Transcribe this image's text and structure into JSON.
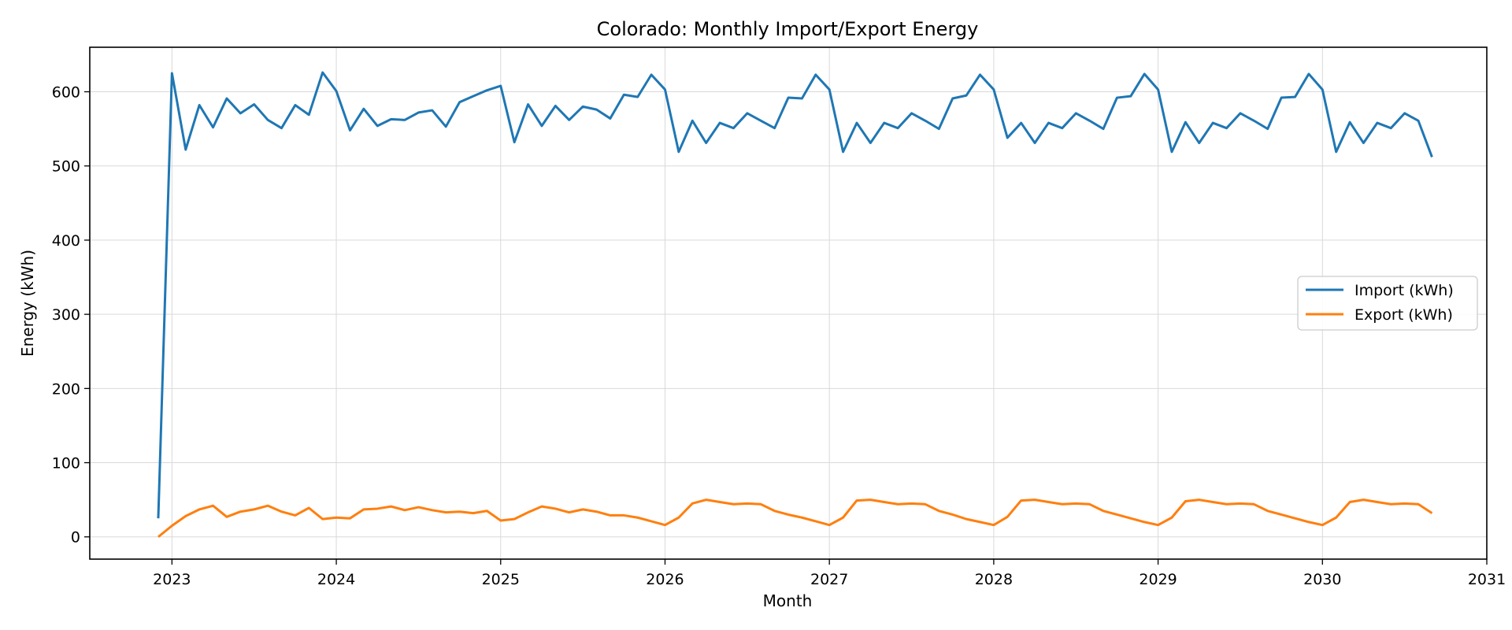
{
  "chart_data": {
    "type": "line",
    "title": "Colorado: Monthly Import/Export Energy",
    "xlabel": "Month",
    "ylabel": "Energy (kWh)",
    "x_ticks": [
      "2023",
      "2024",
      "2025",
      "2026",
      "2027",
      "2028",
      "2029",
      "2030",
      "2031"
    ],
    "y_ticks": [
      0,
      100,
      200,
      300,
      400,
      500,
      600
    ],
    "xlim": [
      "2022-07",
      "2031-01"
    ],
    "ylim": [
      -30,
      660
    ],
    "grid": true,
    "legend_position": "center-right",
    "x": [
      "2022-12",
      "2023-01",
      "2023-02",
      "2023-03",
      "2023-04",
      "2023-05",
      "2023-06",
      "2023-07",
      "2023-08",
      "2023-09",
      "2023-10",
      "2023-11",
      "2023-12",
      "2024-01",
      "2024-02",
      "2024-03",
      "2024-04",
      "2024-05",
      "2024-06",
      "2024-07",
      "2024-08",
      "2024-09",
      "2024-10",
      "2024-11",
      "2024-12",
      "2025-01",
      "2025-02",
      "2025-03",
      "2025-04",
      "2025-05",
      "2025-06",
      "2025-07",
      "2025-08",
      "2025-09",
      "2025-10",
      "2025-11",
      "2025-12",
      "2026-01",
      "2026-02",
      "2026-03",
      "2026-04",
      "2026-05",
      "2026-06",
      "2026-07",
      "2026-08",
      "2026-09",
      "2026-10",
      "2026-11",
      "2026-12",
      "2027-01",
      "2027-02",
      "2027-03",
      "2027-04",
      "2027-05",
      "2027-06",
      "2027-07",
      "2027-08",
      "2027-09",
      "2027-10",
      "2027-11",
      "2027-12",
      "2028-01",
      "2028-02",
      "2028-03",
      "2028-04",
      "2028-05",
      "2028-06",
      "2028-07",
      "2028-08",
      "2028-09",
      "2028-10",
      "2028-11",
      "2028-12",
      "2029-01",
      "2029-02",
      "2029-03",
      "2029-04",
      "2029-05",
      "2029-06",
      "2029-07",
      "2029-08",
      "2029-09",
      "2029-10",
      "2029-11",
      "2029-12",
      "2030-01",
      "2030-02",
      "2030-03",
      "2030-04",
      "2030-05",
      "2030-06",
      "2030-07",
      "2030-08",
      "2030-09"
    ],
    "series": [
      {
        "name": "Import (kWh)",
        "color": "#1f77b4",
        "values": [
          25,
          625,
          522,
          582,
          552,
          591,
          571,
          583,
          562,
          551,
          582,
          569,
          626,
          601,
          548,
          577,
          554,
          563,
          562,
          572,
          575,
          553,
          586,
          594,
          602,
          608,
          532,
          583,
          554,
          581,
          562,
          580,
          576,
          564,
          596,
          593,
          623,
          603,
          519,
          561,
          531,
          558,
          551,
          571,
          561,
          551,
          592,
          591,
          623,
          603,
          519,
          558,
          531,
          558,
          551,
          571,
          561,
          550,
          591,
          595,
          623,
          603,
          538,
          558,
          531,
          558,
          551,
          571,
          561,
          550,
          592,
          594,
          624,
          603,
          519,
          559,
          531,
          558,
          551,
          571,
          561,
          550,
          592,
          593,
          624,
          603,
          519,
          559,
          531,
          558,
          551,
          571,
          561,
          512
        ]
      },
      {
        "name": "Export (kWh)",
        "color": "#ff7f0e",
        "values": [
          0,
          15,
          28,
          37,
          42,
          27,
          34,
          37,
          42,
          34,
          29,
          39,
          24,
          26,
          25,
          37,
          38,
          41,
          36,
          40,
          36,
          33,
          34,
          32,
          35,
          22,
          24,
          33,
          41,
          38,
          33,
          37,
          34,
          29,
          29,
          26,
          21,
          16,
          26,
          45,
          50,
          47,
          44,
          45,
          44,
          35,
          30,
          26,
          21,
          16,
          26,
          49,
          50,
          47,
          44,
          45,
          44,
          35,
          30,
          24,
          20,
          16,
          27,
          49,
          50,
          47,
          44,
          45,
          44,
          35,
          30,
          25,
          20,
          16,
          26,
          48,
          50,
          47,
          44,
          45,
          44,
          35,
          30,
          25,
          20,
          16,
          26,
          47,
          50,
          47,
          44,
          45,
          44,
          32
        ]
      }
    ]
  }
}
